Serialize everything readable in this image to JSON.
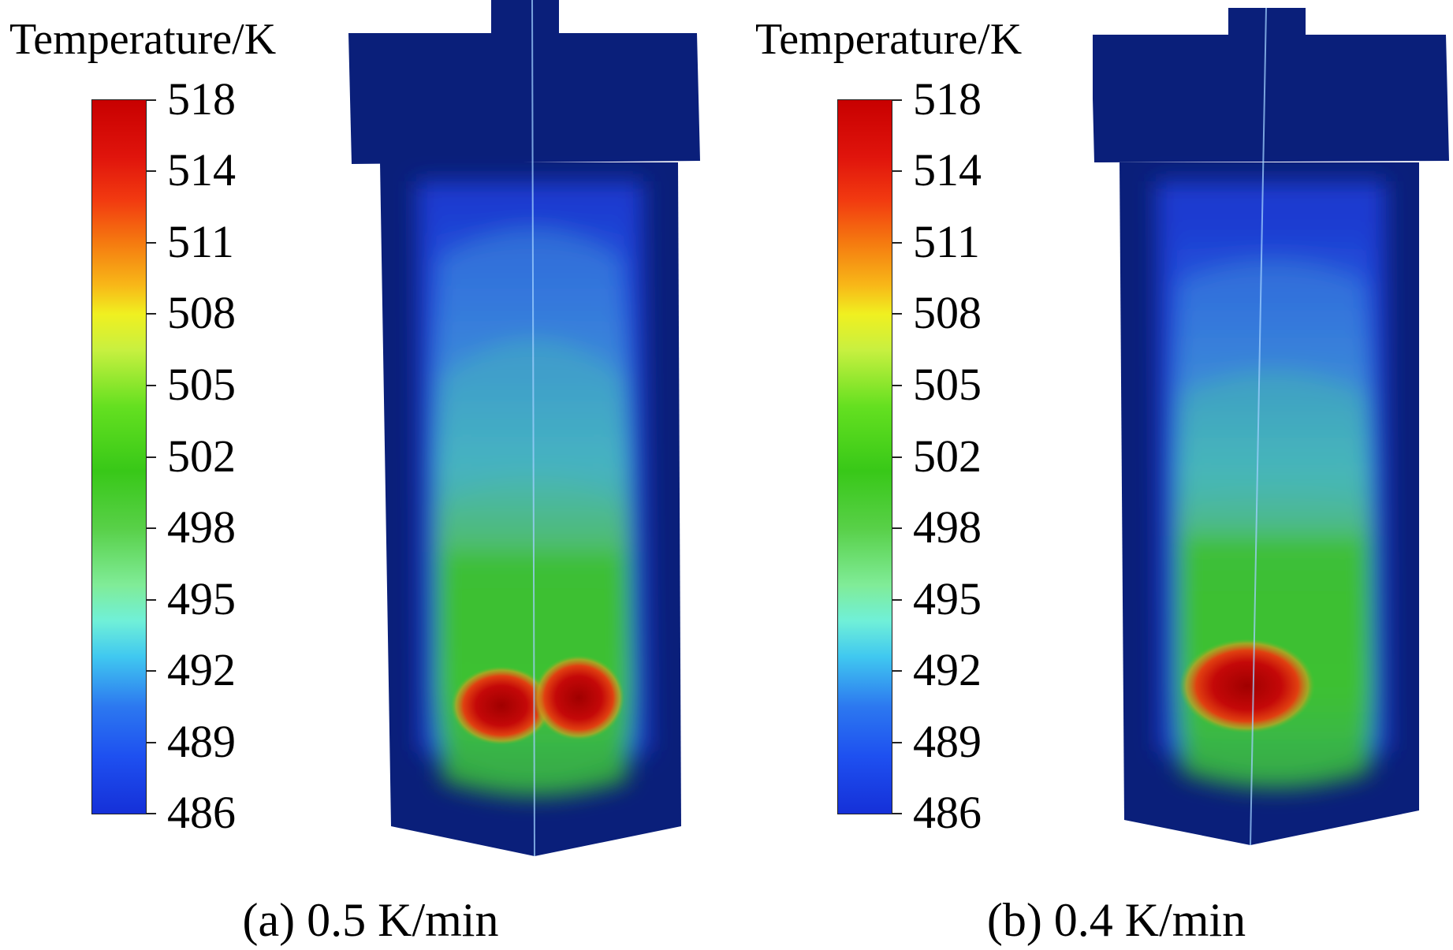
{
  "panels": [
    {
      "colorbar_title": "Temperature/K",
      "colorbar_ticks": [
        "518",
        "514",
        "511",
        "508",
        "505",
        "502",
        "498",
        "495",
        "492",
        "489",
        "486"
      ],
      "caption": "(a) 0.5 K/min",
      "hotspots": "two"
    },
    {
      "colorbar_title": "Temperature/K",
      "colorbar_ticks": [
        "518",
        "514",
        "511",
        "508",
        "505",
        "502",
        "498",
        "495",
        "492",
        "489",
        "486"
      ],
      "caption": "(b) 0.4 K/min",
      "hotspots": "one"
    }
  ],
  "colors": {
    "vessel_outer": "#0a1f7a",
    "cool": "#1e3cd8",
    "mid_cyan": "#40b8c8",
    "warm_green": "#3cc030",
    "hot": "#b40000"
  }
}
